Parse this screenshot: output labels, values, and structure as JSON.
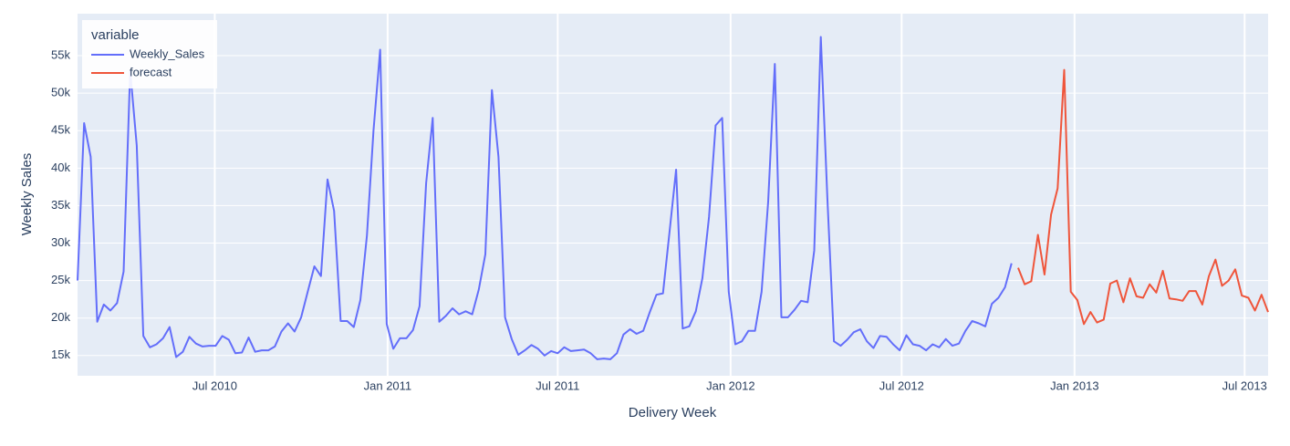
{
  "chart_data": {
    "type": "line",
    "x_title": "Delivery Week",
    "y_title": "Weekly Sales",
    "legend_title": "variable",
    "legend": "top-left",
    "grid": true,
    "xlim": [
      "2010-02-05",
      "2013-07-26"
    ],
    "xticks": [
      {
        "value": "2010-07-01",
        "label": "Jul 2010"
      },
      {
        "value": "2011-01-01",
        "label": "Jan 2011"
      },
      {
        "value": "2011-07-01",
        "label": "Jul 2011"
      },
      {
        "value": "2012-01-01",
        "label": "Jan 2012"
      },
      {
        "value": "2012-07-01",
        "label": "Jul 2012"
      },
      {
        "value": "2013-01-01",
        "label": "Jan 2013"
      },
      {
        "value": "2013-07-01",
        "label": "Jul 2013"
      }
    ],
    "ylim": [
      12300,
      60600
    ],
    "yticks": [
      {
        "value": 15000,
        "label": "15k"
      },
      {
        "value": 20000,
        "label": "20k"
      },
      {
        "value": 25000,
        "label": "25k"
      },
      {
        "value": 30000,
        "label": "30k"
      },
      {
        "value": 35000,
        "label": "35k"
      },
      {
        "value": 40000,
        "label": "40k"
      },
      {
        "value": 45000,
        "label": "45k"
      },
      {
        "value": 50000,
        "label": "50k"
      },
      {
        "value": 55000,
        "label": "55k"
      }
    ],
    "series": [
      {
        "name": "Weekly_Sales",
        "color": "#636efa",
        "x": [
          "2010-02-05",
          "2010-02-12",
          "2010-02-19",
          "2010-02-26",
          "2010-03-05",
          "2010-03-12",
          "2010-03-19",
          "2010-03-26",
          "2010-04-02",
          "2010-04-09",
          "2010-04-16",
          "2010-04-23",
          "2010-04-30",
          "2010-05-07",
          "2010-05-14",
          "2010-05-21",
          "2010-05-28",
          "2010-06-04",
          "2010-06-11",
          "2010-06-18",
          "2010-06-25",
          "2010-07-02",
          "2010-07-09",
          "2010-07-16",
          "2010-07-23",
          "2010-07-30",
          "2010-08-06",
          "2010-08-13",
          "2010-08-20",
          "2010-08-27",
          "2010-09-03",
          "2010-09-10",
          "2010-09-17",
          "2010-09-24",
          "2010-10-01",
          "2010-10-08",
          "2010-10-15",
          "2010-10-22",
          "2010-10-29",
          "2010-11-05",
          "2010-11-12",
          "2010-11-19",
          "2010-11-26",
          "2010-12-03",
          "2010-12-10",
          "2010-12-17",
          "2010-12-24",
          "2010-12-31",
          "2011-01-07",
          "2011-01-14",
          "2011-01-21",
          "2011-01-28",
          "2011-02-04",
          "2011-02-11",
          "2011-02-18",
          "2011-02-25",
          "2011-03-04",
          "2011-03-11",
          "2011-03-18",
          "2011-03-25",
          "2011-04-01",
          "2011-04-08",
          "2011-04-15",
          "2011-04-22",
          "2011-04-29",
          "2011-05-06",
          "2011-05-13",
          "2011-05-20",
          "2011-05-27",
          "2011-06-03",
          "2011-06-10",
          "2011-06-17",
          "2011-06-24",
          "2011-07-01",
          "2011-07-08",
          "2011-07-15",
          "2011-07-22",
          "2011-07-29",
          "2011-08-05",
          "2011-08-12",
          "2011-08-19",
          "2011-08-26",
          "2011-09-02",
          "2011-09-09",
          "2011-09-16",
          "2011-09-23",
          "2011-09-30",
          "2011-10-07",
          "2011-10-14",
          "2011-10-21",
          "2011-10-28",
          "2011-11-04",
          "2011-11-11",
          "2011-11-18",
          "2011-11-25",
          "2011-12-02",
          "2011-12-09",
          "2011-12-16",
          "2011-12-23",
          "2011-12-30",
          "2012-01-06",
          "2012-01-13",
          "2012-01-20",
          "2012-01-27",
          "2012-02-03",
          "2012-02-10",
          "2012-02-17",
          "2012-02-24",
          "2012-03-02",
          "2012-03-09",
          "2012-03-16",
          "2012-03-23",
          "2012-03-30",
          "2012-04-06",
          "2012-04-13",
          "2012-04-20",
          "2012-04-27",
          "2012-05-04",
          "2012-05-11",
          "2012-05-18",
          "2012-05-25",
          "2012-06-01",
          "2012-06-08",
          "2012-06-15",
          "2012-06-22",
          "2012-06-29",
          "2012-07-06",
          "2012-07-13",
          "2012-07-20",
          "2012-07-27",
          "2012-08-03",
          "2012-08-10",
          "2012-08-17",
          "2012-08-24",
          "2012-08-31",
          "2012-09-07",
          "2012-09-14",
          "2012-09-21",
          "2012-09-28",
          "2012-10-05",
          "2012-10-12",
          "2012-10-19",
          "2012-10-26"
        ],
        "values": [
          25000,
          46000,
          41500,
          19500,
          21800,
          21000,
          22000,
          26200,
          53000,
          43000,
          17600,
          16100,
          16500,
          17300,
          18800,
          14800,
          15500,
          17500,
          16600,
          16200,
          16300,
          16300,
          17600,
          17100,
          15300,
          15400,
          17400,
          15500,
          15700,
          15700,
          16200,
          18200,
          19300,
          18200,
          20100,
          23500,
          26900,
          25600,
          38500,
          34300,
          19600,
          19600,
          18800,
          22400,
          31000,
          45000,
          55800,
          19200,
          15900,
          17300,
          17300,
          18400,
          21600,
          38000,
          46700,
          19500,
          20300,
          21300,
          20500,
          20900,
          20500,
          23800,
          28500,
          50400,
          41500,
          20100,
          17200,
          15100,
          15700,
          16400,
          15900,
          15000,
          15600,
          15300,
          16100,
          15600,
          15700,
          15800,
          15300,
          14500,
          14600,
          14500,
          15300,
          17800,
          18500,
          17900,
          18300,
          20800,
          23100,
          23300,
          31500,
          39800,
          18600,
          18900,
          20900,
          25300,
          33500,
          45700,
          46700,
          23500,
          16500,
          16900,
          18300,
          18300,
          23500,
          35500,
          53900,
          20100,
          20100,
          21100,
          22300,
          22100,
          29000,
          57500,
          36000,
          16900,
          16300,
          17100,
          18100,
          18500,
          16900,
          16000,
          17600,
          17500,
          16500,
          15700,
          17700,
          16500,
          16300,
          15700,
          16500,
          16100,
          17200,
          16300,
          16600,
          18300,
          19600,
          19300,
          18900,
          21900,
          22700,
          24100,
          27300
        ]
      },
      {
        "name": "forecast",
        "color": "#ef553b",
        "x": [
          "2012-11-02",
          "2012-11-09",
          "2012-11-16",
          "2012-11-23",
          "2012-11-30",
          "2012-12-07",
          "2012-12-14",
          "2012-12-21",
          "2012-12-28",
          "2013-01-04",
          "2013-01-11",
          "2013-01-18",
          "2013-01-25",
          "2013-02-01",
          "2013-02-08",
          "2013-02-15",
          "2013-02-22",
          "2013-03-01",
          "2013-03-08",
          "2013-03-15",
          "2013-03-22",
          "2013-03-29",
          "2013-04-05",
          "2013-04-12",
          "2013-04-19",
          "2013-04-26",
          "2013-05-03",
          "2013-05-10",
          "2013-05-17",
          "2013-05-24",
          "2013-05-31",
          "2013-06-07",
          "2013-06-14",
          "2013-06-21",
          "2013-06-28",
          "2013-07-05",
          "2013-07-12",
          "2013-07-19",
          "2013-07-26"
        ],
        "values": [
          26700,
          24500,
          24900,
          31100,
          25800,
          33800,
          37300,
          53100,
          23500,
          22400,
          19200,
          20800,
          19400,
          19800,
          24600,
          25000,
          22100,
          25300,
          22900,
          22700,
          24500,
          23400,
          26300,
          22600,
          22500,
          22300,
          23600,
          23600,
          21800,
          25600,
          27800,
          24300,
          25000,
          26500,
          23000,
          22700,
          21000,
          23100,
          20800
        ]
      }
    ]
  }
}
